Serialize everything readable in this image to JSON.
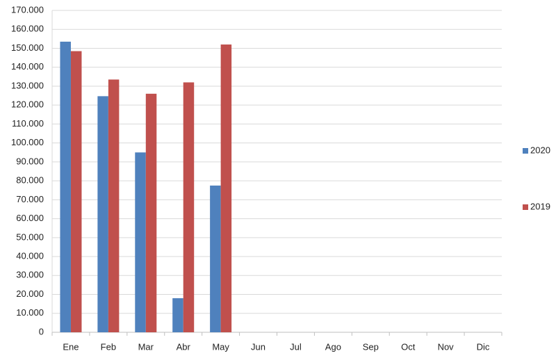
{
  "chart_data": {
    "type": "bar",
    "categories": [
      "Ene",
      "Feb",
      "Mar",
      "Abr",
      "May",
      "Jun",
      "Jul",
      "Ago",
      "Sep",
      "Oct",
      "Nov",
      "Dic"
    ],
    "series": [
      {
        "name": "2020",
        "color": "#4f81bd",
        "values": [
          153500,
          124700,
          95000,
          18000,
          77500,
          null,
          null,
          null,
          null,
          null,
          null,
          null
        ]
      },
      {
        "name": "2019",
        "color": "#c0504d",
        "values": [
          148500,
          133500,
          126000,
          132000,
          152000,
          null,
          null,
          null,
          null,
          null,
          null,
          null
        ]
      }
    ],
    "ylim": [
      0,
      170000
    ],
    "yticks": [
      0,
      {
        "value": 10000,
        "label": "10.000"
      },
      {
        "value": 20000,
        "label": "20.000"
      },
      {
        "value": 30000,
        "label": "30.000"
      },
      {
        "value": 40000,
        "label": "40.000"
      },
      {
        "value": 50000,
        "label": "50.000"
      },
      {
        "value": 60000,
        "label": "60.000"
      },
      {
        "value": 70000,
        "label": "70.000"
      },
      {
        "value": 80000,
        "label": "80.000"
      },
      {
        "value": 90000,
        "label": "90.000"
      },
      {
        "value": 100000,
        "label": "100.000"
      },
      {
        "value": 110000,
        "label": "110.000"
      },
      {
        "value": 120000,
        "label": "120.000"
      },
      {
        "value": 130000,
        "label": "130.000"
      },
      {
        "value": 140000,
        "label": "140.000"
      },
      {
        "value": 150000,
        "label": "150.000"
      },
      {
        "value": 160000,
        "label": "160.000"
      },
      {
        "value": 170000,
        "label": "170.000"
      }
    ],
    "grid": true,
    "legend": "right"
  }
}
